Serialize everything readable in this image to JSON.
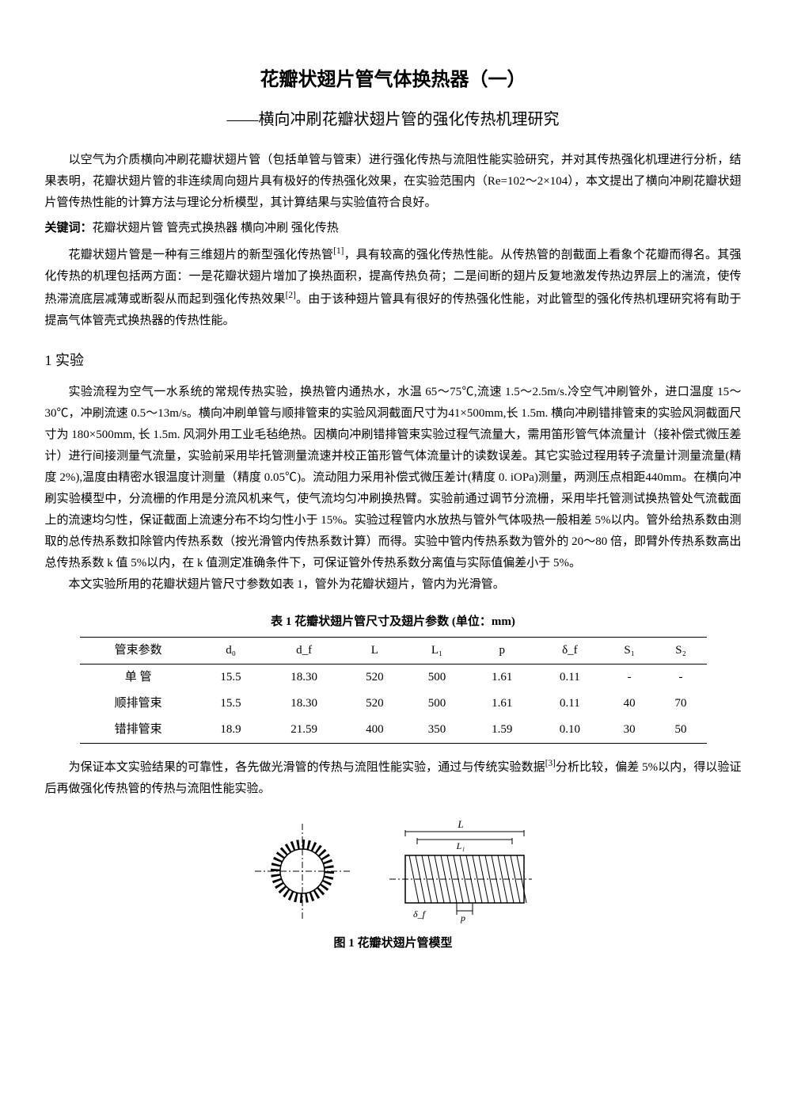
{
  "title": "花瓣状翅片管气体换热器（一）",
  "subtitle": "——横向冲刷花瓣状翅片管的强化传热机理研究",
  "abstract": "以空气为介质横向冲刷花瓣状翅片管（包括单管与管束）进行强化传热与流阻性能实验研究，并对其传热强化机理进行分析，结果表明，花瓣状翅片管的非连续周向翅片具有极好的传热强化效果，在实验范围内（Re=102～2×104），本文提出了横向冲刷花瓣状翅片管传热性能的计算方法与理论分析模型，其计算结果与实验值符合良好。",
  "keywords_label": "关键词：",
  "keywords": "花瓣状翅片管 管壳式换热器 横向冲刷 强化传热",
  "intro_para1_a": "花瓣状翅片管是一种有三维翅片的新型强化传热管",
  "intro_para1_b": "，具有较高的强化传热性能。从传热管的剖截面上看象个花瓣而得名。其强化传热的机理包括两方面：一是花瓣状翅片增加了换热面积，提高传热负荷；二是间断的翅片反复地激发传热边界层上的湍流，使传热滞流底层减薄或断裂从而起到强化传热效果",
  "intro_para1_c": "。由于该种翅片管具有很好的传热强化性能，对此管型的强化传热机理研究将有助于提高气体管壳式换热器的传热性能。",
  "ref1": "[1]",
  "ref2": "[2]",
  "ref3": "[3]",
  "section1_title": "1 实验",
  "section1_para1": "实验流程为空气一水系统的常规传热实验，换热管内通热水，水温 65～75℃,流速 1.5～2.5m/s.冷空气冲刷管外，进口温度 15～30℃，冲刷流速 0.5～13m/s。横向冲刷单管与顺排管束的实验风洞截面尺寸为41×500mm,长 1.5m. 横向冲刷错排管束的实验风洞截面尺寸为 180×500mm, 长 1.5m. 风洞外用工业毛毡绝热。因横向冲刷错排管束实验过程气流量大，需用笛形管气体流量计（接补偿式微压差计）进行间接测量气流量，实验前采用毕托管测量流速并校正笛形管气体流量计的读数误差。其它实验过程用转子流量计测量流量(精度 2%),温度由精密水银温度计测量（精度 0.05℃)。流动阻力采用补偿式微压差计(精度 0. iOPa)测量，两测压点相距440mm。在横向冲刷实验模型中，分流栅的作用是分流风机来气，使气流均匀冲刷换热臂。实验前通过调节分流栅，采用毕托管测试换热管处气流截面上的流速均匀性，保证截面上流速分布不均匀性小于 15%。实验过程管内水放热与管外气体吸热一般相差 5%以内。管外给热系数由测取的总传热系数扣除管内传热系数（按光滑管内传热系数计算）而得。实验中管内传热系数为管外的 20～80 倍，即臂外传热系数高出总传热系数 k 值 5%以内，在 k 值测定准确条件下，可保证管外传热系数分离值与实际值偏差小于 5%。",
  "section1_para2": "本文实验所用的花瓣状翅片管尺寸参数如表 1，管外为花瓣状翅片，管内为光滑管。",
  "table1": {
    "title": "表 1    花瓣状翅片管尺寸及翅片参数 (单位：mm)",
    "headers": [
      "管束参数",
      "d₀",
      "d_f",
      "L",
      "L₁",
      "p",
      "δ_f",
      "S₁",
      "S₂"
    ],
    "rows": [
      [
        "单    管",
        "15.5",
        "18.30",
        "520",
        "500",
        "1.61",
        "0.11",
        "-",
        "-"
      ],
      [
        "顺排管束",
        "15.5",
        "18.30",
        "520",
        "500",
        "1.61",
        "0.11",
        "40",
        "70"
      ],
      [
        "错排管束",
        "18.9",
        "21.59",
        "400",
        "350",
        "1.59",
        "0.10",
        "30",
        "50"
      ]
    ]
  },
  "section1_para3_a": "为保证本文实验结果的可靠性，各先做光滑管的传热与流阻性能实验，通过与传统实验数据",
  "section1_para3_b": "分析比较，偏差 5%以内，得以验证后再做强化传热管的传热与流阻性能实验。",
  "figure1_caption": "图 1 花瓣状翅片管模型",
  "figure1": {
    "left_label_top": "L",
    "left_label_sub": "L₁",
    "right_label_delta": "δ_f",
    "right_label_p": "p"
  }
}
